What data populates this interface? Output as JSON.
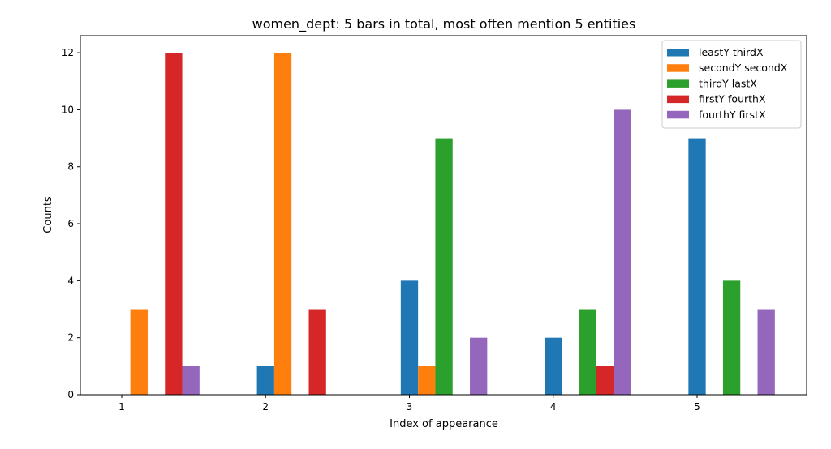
{
  "chart_data": {
    "type": "bar",
    "title": "women_dept: 5 bars in total, most often mention  5 entities",
    "xlabel": "Index of appearance",
    "ylabel": "Counts",
    "categories": [
      "1",
      "2",
      "3",
      "4",
      "5"
    ],
    "ylim": [
      0,
      12.6
    ],
    "yticks": [
      0,
      2,
      4,
      6,
      8,
      10,
      12
    ],
    "grid": false,
    "legend_position": "top-right",
    "series": [
      {
        "name": "leastY thirdX",
        "color": "#1f77b4",
        "values": [
          0,
          1,
          4,
          2,
          9
        ]
      },
      {
        "name": "secondY secondX",
        "color": "#ff7f0e",
        "values": [
          3,
          12,
          1,
          0,
          0
        ]
      },
      {
        "name": "thirdY lastX",
        "color": "#2ca02c",
        "values": [
          0,
          0,
          9,
          3,
          4
        ]
      },
      {
        "name": "firstY fourthX",
        "color": "#d62728",
        "values": [
          12,
          3,
          0,
          1,
          0
        ]
      },
      {
        "name": "fourthY firstX",
        "color": "#9467bd",
        "values": [
          1,
          0,
          2,
          10,
          3
        ]
      }
    ]
  }
}
